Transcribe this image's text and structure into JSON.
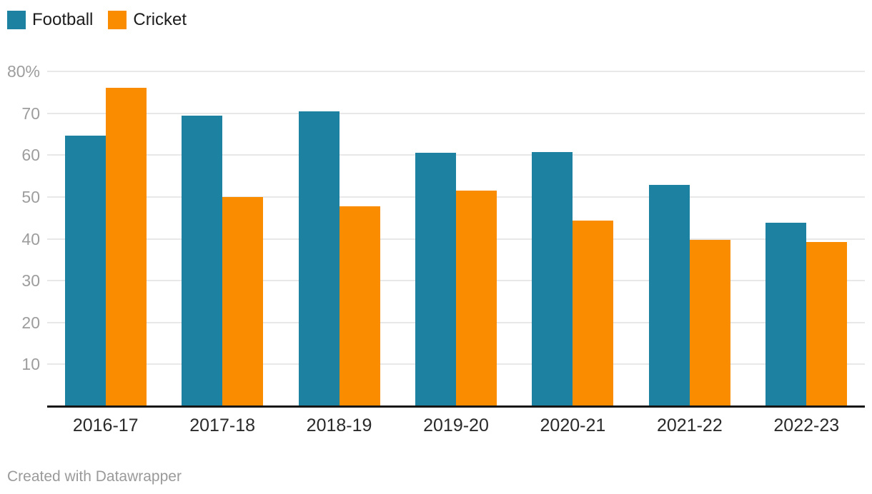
{
  "chart_data": {
    "type": "bar",
    "title": "",
    "xlabel": "",
    "ylabel": "",
    "unit": "%",
    "categories": [
      "2016-17",
      "2017-18",
      "2018-19",
      "2019-20",
      "2020-21",
      "2021-22",
      "2022-23"
    ],
    "series": [
      {
        "name": "Football",
        "color": "#1d81a2",
        "values": [
          64.6,
          69.4,
          70.4,
          60.6,
          60.8,
          52.8,
          43.8
        ]
      },
      {
        "name": "Cricket",
        "color": "#fa8c00",
        "values": [
          76.1,
          50.0,
          47.7,
          51.5,
          44.3,
          39.8,
          39.2
        ]
      }
    ],
    "ylim": [
      0,
      80
    ],
    "yticks": [
      {
        "value": 10,
        "label": "10"
      },
      {
        "value": 20,
        "label": "20"
      },
      {
        "value": 30,
        "label": "30"
      },
      {
        "value": 40,
        "label": "40"
      },
      {
        "value": 50,
        "label": "50"
      },
      {
        "value": 60,
        "label": "60"
      },
      {
        "value": 70,
        "label": "70"
      },
      {
        "value": 80,
        "label": "80%"
      }
    ],
    "grid": "horizontal",
    "legend_position": "top-left"
  },
  "legend": {
    "items": [
      {
        "label": "Football",
        "color": "#1d81a2"
      },
      {
        "label": "Cricket",
        "color": "#fa8c00"
      }
    ]
  },
  "footer": {
    "text": "Created with Datawrapper"
  }
}
